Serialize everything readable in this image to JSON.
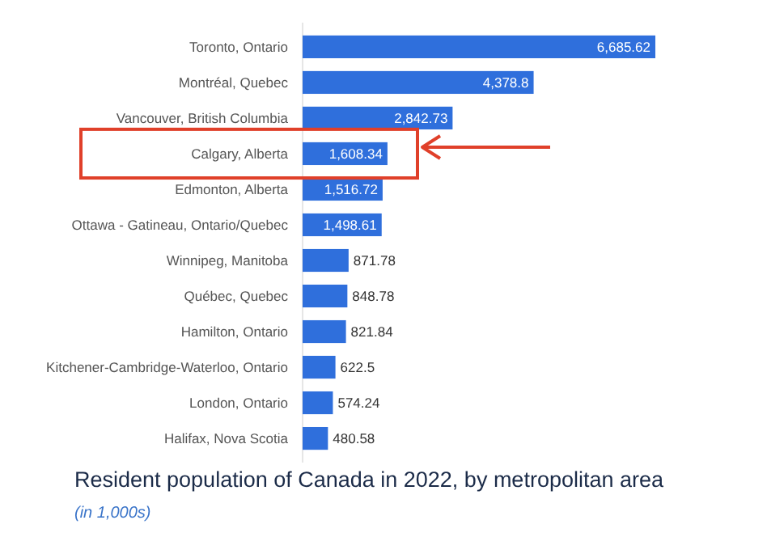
{
  "chart_data": {
    "type": "bar",
    "orientation": "horizontal",
    "relative": false,
    "title": "Resident population of Canada in 2022, by metropolitan area",
    "subtitle": "(in 1,000s)",
    "categories": [
      "Toronto, Ontario",
      "Montréal, Quebec",
      "Vancouver, British Columbia",
      "Calgary, Alberta",
      "Edmonton, Alberta",
      "Ottawa - Gatineau, Ontario/Quebec",
      "Winnipeg, Manitoba",
      "Québec, Quebec",
      "Hamilton, Ontario",
      "Kitchener-Cambridge-Waterloo, Ontario",
      "London, Ontario",
      "Halifax, Nova Scotia"
    ],
    "values": [
      6685.62,
      4378.8,
      2842.73,
      1608.34,
      1516.72,
      1498.61,
      871.78,
      848.78,
      821.84,
      622.5,
      574.24,
      480.58
    ],
    "value_labels": [
      "6,685.62",
      "4,378.8",
      "2,842.73",
      "1,608.34",
      "1,516.72",
      "1,498.61",
      "871.78",
      "848.78",
      "821.84",
      "622.5",
      "574.24",
      "480.58"
    ],
    "color": "#2f6fdc"
  }
}
